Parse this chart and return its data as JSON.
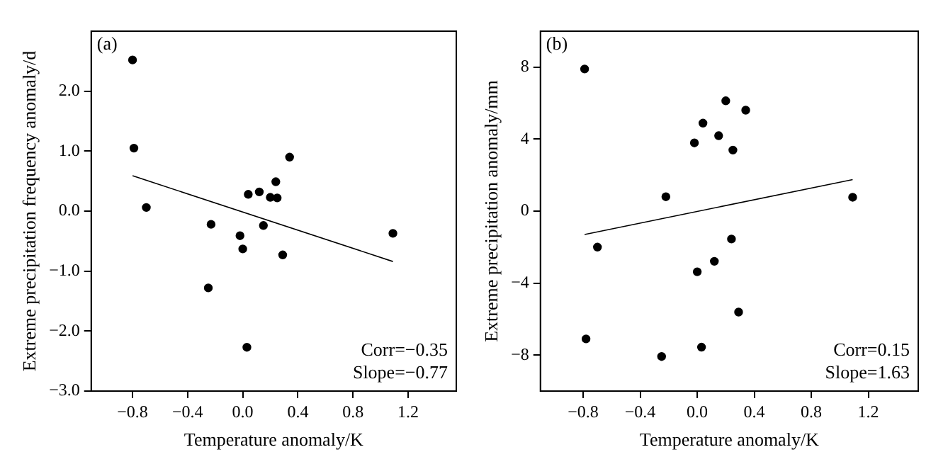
{
  "chart_data": [
    {
      "type": "scatter",
      "xlabel": "Temperature anomaly/K",
      "ylabel": "Extreme precipitation frequency anomaly/d",
      "annotations": [
        "(a)",
        "Corr=−0.35",
        "Slope=−0.77"
      ],
      "xlim": [
        -1.1,
        1.55
      ],
      "ylim": [
        -3,
        3
      ],
      "xticks": [
        {
          "value": -0.8,
          "label": "−0.8"
        },
        {
          "value": -0.4,
          "label": "−0.4"
        },
        {
          "value": 0,
          "label": "0.0"
        },
        {
          "value": 0.4,
          "label": "0.4"
        },
        {
          "value": 0.8,
          "label": "0.8"
        },
        {
          "value": 1.2,
          "label": "1.2"
        }
      ],
      "yticks": [
        {
          "value": -3,
          "label": "−3.0"
        },
        {
          "value": -2,
          "label": "−2.0"
        },
        {
          "value": -1,
          "label": "−1.0"
        },
        {
          "value": 0,
          "label": "0.0"
        },
        {
          "value": 1,
          "label": "1.0"
        },
        {
          "value": 2,
          "label": "2.0"
        }
      ],
      "grid": false,
      "legend": false,
      "series": [
        {
          "marker": "circle",
          "color": "#000000",
          "x": [
            -0.8,
            -0.79,
            -0.7,
            -0.23,
            -0.25,
            -0.02,
            0.0,
            0.03,
            0.04,
            0.12,
            0.15,
            0.2,
            0.25,
            0.24,
            0.29,
            0.34,
            1.09
          ],
          "values": [
            2.52,
            1.05,
            0.06,
            -0.22,
            -1.28,
            -0.41,
            -0.63,
            -2.27,
            0.28,
            0.32,
            -0.24,
            0.23,
            0.22,
            0.49,
            -0.73,
            0.9,
            -0.37
          ]
        },
        {
          "type": "line",
          "marker": "none",
          "color": "#000000",
          "x": [
            -0.8,
            1.09
          ],
          "values": [
            0.59,
            -0.84
          ]
        }
      ]
    },
    {
      "type": "scatter",
      "xlabel": "Temperature anomaly/K",
      "ylabel": "Extreme precipitation anomaly/mm",
      "annotations": [
        "(b)",
        "Corr=0.15",
        "Slope=1.63"
      ],
      "xlim": [
        -1.1,
        1.55
      ],
      "ylim": [
        -10,
        10
      ],
      "xticks": [
        {
          "value": -0.8,
          "label": "−0.8"
        },
        {
          "value": -0.4,
          "label": "−0.4"
        },
        {
          "value": 0,
          "label": "0.0"
        },
        {
          "value": 0.4,
          "label": "0.4"
        },
        {
          "value": 0.8,
          "label": "0.8"
        },
        {
          "value": 1.2,
          "label": "1.2"
        }
      ],
      "yticks": [
        {
          "value": -8,
          "label": "−8"
        },
        {
          "value": -4,
          "label": "−4"
        },
        0,
        4,
        8
      ],
      "grid": false,
      "legend": false,
      "series": [
        {
          "marker": "circle",
          "color": "#000000",
          "x": [
            -0.79,
            -0.78,
            -0.7,
            -0.22,
            -0.25,
            -0.02,
            0.0,
            0.03,
            0.04,
            0.12,
            0.15,
            0.2,
            0.24,
            0.25,
            0.29,
            0.34,
            1.09
          ],
          "values": [
            7.9,
            -7.1,
            -2.0,
            0.8,
            -8.08,
            3.79,
            -3.37,
            -7.56,
            4.89,
            -2.79,
            4.19,
            6.13,
            -1.55,
            3.39,
            -5.61,
            5.61,
            0.77
          ]
        },
        {
          "type": "line",
          "marker": "none",
          "color": "#000000",
          "x": [
            -0.79,
            1.09
          ],
          "values": [
            -1.3,
            1.75
          ]
        }
      ]
    }
  ]
}
